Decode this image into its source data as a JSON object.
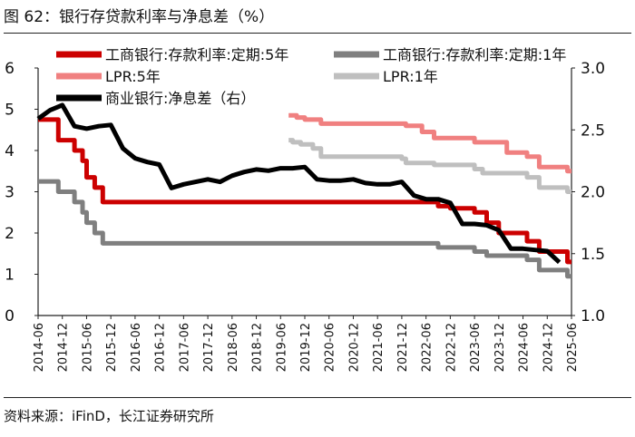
{
  "title": "图 62：银行存贷款利率与净息差（%）",
  "source": "资料来源：iFinD，长江证券研究所",
  "chart_data": {
    "type": "line",
    "y_left_lim": [
      0,
      6
    ],
    "y_left_ticks": [
      "0",
      "1",
      "2",
      "3",
      "4",
      "5",
      "6"
    ],
    "y_right_lim": [
      1.0,
      3.0
    ],
    "y_right_ticks": [
      "1.0",
      "1.5",
      "2.0",
      "2.5",
      "3.0"
    ],
    "x_range": [
      "2014-06",
      "2025-06"
    ],
    "x_ticks": [
      "2014-06",
      "2014-12",
      "2015-06",
      "2015-12",
      "2016-06",
      "2016-12",
      "2017-06",
      "2017-12",
      "2018-06",
      "2018-12",
      "2019-06",
      "2019-12",
      "2020-06",
      "2020-12",
      "2021-06",
      "2021-12",
      "2022-06",
      "2022-12",
      "2023-06",
      "2023-12",
      "2024-06",
      "2024-12",
      "2025-06"
    ],
    "series": [
      {
        "name": "工商银行:存款利率:定期:5年",
        "color": "#cc0000",
        "axis": "left",
        "step": true,
        "points": [
          [
            "2014-06",
            4.75
          ],
          [
            "2014-11",
            4.25
          ],
          [
            "2015-03",
            4.0
          ],
          [
            "2015-05",
            3.75
          ],
          [
            "2015-06",
            3.35
          ],
          [
            "2015-08",
            3.1
          ],
          [
            "2015-10",
            2.75
          ],
          [
            "2022-09",
            2.65
          ],
          [
            "2022-12",
            2.6
          ],
          [
            "2023-06",
            2.5
          ],
          [
            "2023-09",
            2.25
          ],
          [
            "2023-12",
            2.0
          ],
          [
            "2024-07",
            1.8
          ],
          [
            "2024-10",
            1.55
          ],
          [
            "2025-05",
            1.3
          ],
          [
            "2025-06",
            1.3
          ]
        ]
      },
      {
        "name": "工商银行:存款利率:定期:1年",
        "color": "#7f7f7f",
        "axis": "left",
        "step": true,
        "points": [
          [
            "2014-06",
            3.25
          ],
          [
            "2014-11",
            3.0
          ],
          [
            "2015-03",
            2.75
          ],
          [
            "2015-05",
            2.5
          ],
          [
            "2015-06",
            2.25
          ],
          [
            "2015-08",
            2.0
          ],
          [
            "2015-10",
            1.75
          ],
          [
            "2022-09",
            1.65
          ],
          [
            "2023-06",
            1.55
          ],
          [
            "2023-09",
            1.45
          ],
          [
            "2024-07",
            1.35
          ],
          [
            "2024-10",
            1.1
          ],
          [
            "2025-05",
            0.95
          ],
          [
            "2025-06",
            0.95
          ]
        ]
      },
      {
        "name": "LPR:5年",
        "color": "#f08080",
        "axis": "left",
        "step": true,
        "points": [
          [
            "2019-08",
            4.85
          ],
          [
            "2019-10",
            4.8
          ],
          [
            "2019-12",
            4.75
          ],
          [
            "2020-02",
            4.75
          ],
          [
            "2020-04",
            4.65
          ],
          [
            "2022-01",
            4.6
          ],
          [
            "2022-05",
            4.45
          ],
          [
            "2022-08",
            4.3
          ],
          [
            "2023-06",
            4.2
          ],
          [
            "2024-02",
            3.95
          ],
          [
            "2024-07",
            3.85
          ],
          [
            "2024-10",
            3.6
          ],
          [
            "2025-05",
            3.5
          ],
          [
            "2025-06",
            3.5
          ]
        ]
      },
      {
        "name": "LPR:1年",
        "color": "#bfbfbf",
        "axis": "left",
        "step": true,
        "points": [
          [
            "2019-08",
            4.25
          ],
          [
            "2019-09",
            4.2
          ],
          [
            "2019-11",
            4.15
          ],
          [
            "2020-02",
            4.05
          ],
          [
            "2020-04",
            3.85
          ],
          [
            "2021-12",
            3.8
          ],
          [
            "2022-01",
            3.7
          ],
          [
            "2022-08",
            3.65
          ],
          [
            "2023-06",
            3.55
          ],
          [
            "2023-08",
            3.45
          ],
          [
            "2024-07",
            3.35
          ],
          [
            "2024-10",
            3.1
          ],
          [
            "2025-05",
            3.0
          ],
          [
            "2025-06",
            3.0
          ]
        ]
      },
      {
        "name": "商业银行:净息差（右）",
        "color": "#000000",
        "axis": "right",
        "step": false,
        "points": [
          [
            "2014-06",
            2.59
          ],
          [
            "2014-09",
            2.66
          ],
          [
            "2014-12",
            2.7
          ],
          [
            "2015-03",
            2.53
          ],
          [
            "2015-06",
            2.51
          ],
          [
            "2015-09",
            2.53
          ],
          [
            "2015-12",
            2.54
          ],
          [
            "2016-03",
            2.35
          ],
          [
            "2016-06",
            2.27
          ],
          [
            "2016-09",
            2.24
          ],
          [
            "2016-12",
            2.22
          ],
          [
            "2017-03",
            2.03
          ],
          [
            "2017-06",
            2.06
          ],
          [
            "2017-09",
            2.08
          ],
          [
            "2017-12",
            2.1
          ],
          [
            "2018-03",
            2.08
          ],
          [
            "2018-06",
            2.13
          ],
          [
            "2018-09",
            2.16
          ],
          [
            "2018-12",
            2.18
          ],
          [
            "2019-03",
            2.17
          ],
          [
            "2019-06",
            2.19
          ],
          [
            "2019-09",
            2.19
          ],
          [
            "2019-12",
            2.2
          ],
          [
            "2020-03",
            2.1
          ],
          [
            "2020-06",
            2.09
          ],
          [
            "2020-09",
            2.09
          ],
          [
            "2020-12",
            2.1
          ],
          [
            "2021-03",
            2.07
          ],
          [
            "2021-06",
            2.06
          ],
          [
            "2021-09",
            2.06
          ],
          [
            "2021-12",
            2.08
          ],
          [
            "2022-03",
            1.97
          ],
          [
            "2022-06",
            1.94
          ],
          [
            "2022-09",
            1.94
          ],
          [
            "2022-12",
            1.91
          ],
          [
            "2023-03",
            1.74
          ],
          [
            "2023-06",
            1.74
          ],
          [
            "2023-09",
            1.73
          ],
          [
            "2023-12",
            1.69
          ],
          [
            "2024-03",
            1.54
          ],
          [
            "2024-06",
            1.54
          ],
          [
            "2024-09",
            1.53
          ],
          [
            "2024-12",
            1.52
          ],
          [
            "2025-03",
            1.43
          ]
        ]
      }
    ]
  }
}
